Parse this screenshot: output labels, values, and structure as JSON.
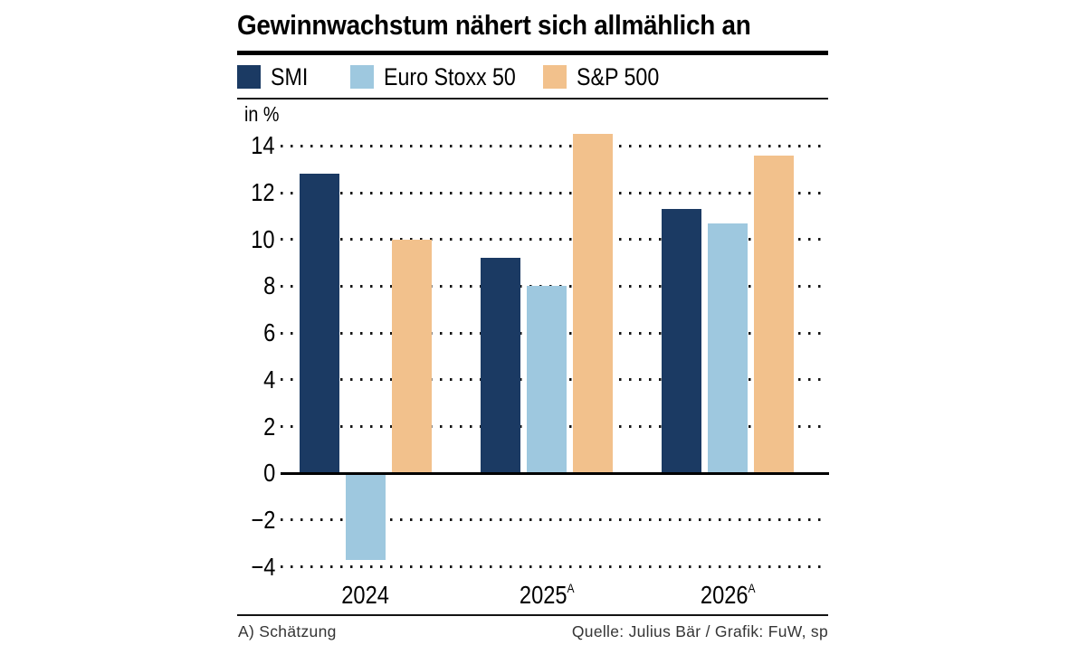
{
  "header": {
    "title": "Gewinnwachstum nähert sich allmählich an"
  },
  "axis": {
    "unit_label": "in %"
  },
  "footer": {
    "footnote": "A) Schätzung",
    "source": "Quelle: Julius Bär / Grafik: FuW, sp"
  },
  "chart_data": {
    "type": "bar",
    "title": "Gewinnwachstum nähert sich allmählich an",
    "unit_label": "in %",
    "xlabel": "",
    "ylabel": "in %",
    "categories": [
      "2024",
      "2025",
      "2026"
    ],
    "category_superscripts": [
      "",
      "A",
      "A"
    ],
    "series": [
      {
        "name": "SMI",
        "color": "#1b3a63",
        "values": [
          12.8,
          9.2,
          11.3
        ]
      },
      {
        "name": "Euro Stoxx 50",
        "color": "#9ec8df",
        "values": [
          -3.7,
          8.0,
          10.7
        ]
      },
      {
        "name": "S&P 500",
        "color": "#f2c18c",
        "values": [
          10.0,
          14.5,
          13.6
        ]
      }
    ],
    "yticks": [
      14,
      12,
      10,
      8,
      6,
      4,
      2,
      0,
      -2,
      -4
    ],
    "ylim": [
      -4.7,
      15.3
    ],
    "grid": "dotted-horizontal",
    "zero_line": "solid",
    "legend_position": "top",
    "footnote": "A) Schätzung",
    "source": "Quelle: Julius Bär / Grafik: FuW, sp"
  }
}
